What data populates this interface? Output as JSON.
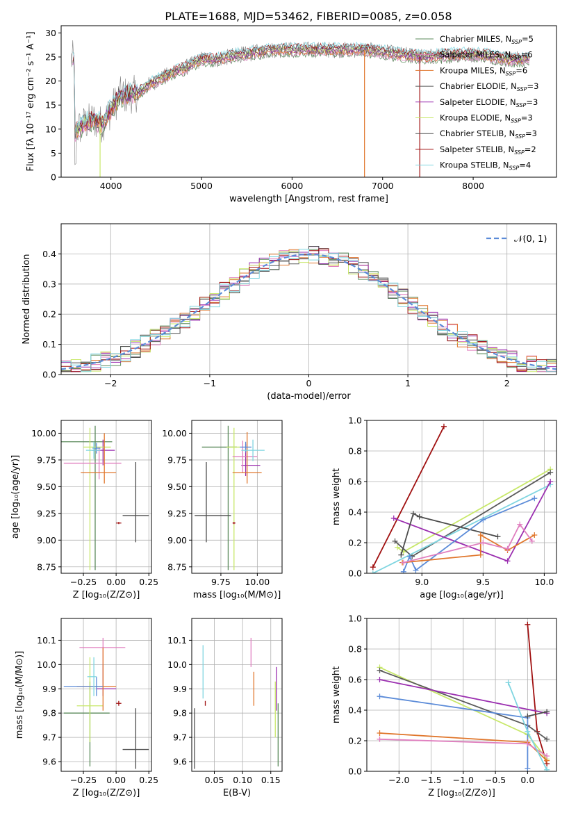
{
  "title": "PLATE=1688, MJD=53462, FIBERID=0085, z=0.058",
  "colors": {
    "chabrier_miles": "#5a8a5a",
    "salpeter_miles": "#e07fbf",
    "kroupa_miles": "#e0762b",
    "chabrier_elodie": "#5a5a5a",
    "salpeter_elodie": "#9b2fb0",
    "kroupa_elodie": "#c8e86a",
    "chabrier_stelib": "#4d4d4d",
    "salpeter_stelib": "#a01010",
    "kroupa_stelib": "#7fd5e0",
    "blue": "#5b8bd8",
    "grid": "#b0b0b0",
    "gray_spectrum": "#808080"
  },
  "chart_data": [
    {
      "id": "spectrum",
      "type": "line",
      "xlabel": "wavelength [Angstrom, rest frame]",
      "ylabel": "Flux [fλ 10⁻¹⁷ erg cm⁻² s⁻¹ A⁻¹]",
      "xlim": [
        3450,
        8920
      ],
      "ylim": [
        0,
        31.5
      ],
      "xticks": [
        4000,
        5000,
        6000,
        7000,
        8000
      ],
      "yticks": [
        0,
        5,
        10,
        15,
        20,
        25,
        30
      ],
      "legend_position": "right",
      "legend": [
        {
          "label": "Chabrier MILES, N",
          "sub": "SSP",
          "suffix": "=5",
          "color": "#5a8a5a"
        },
        {
          "label": "Salpeter MILES, N",
          "sub": "SSP",
          "suffix": "=6",
          "color": "#e07fbf"
        },
        {
          "label": "Kroupa MILES, N",
          "sub": "SSP",
          "suffix": "=6",
          "color": "#e0762b"
        },
        {
          "label": "Chabrier ELODIE, N",
          "sub": "SSP",
          "suffix": "=3",
          "color": "#5a5a5a"
        },
        {
          "label": "Salpeter ELODIE, N",
          "sub": "SSP",
          "suffix": "=3",
          "color": "#9b2fb0"
        },
        {
          "label": "Kroupa ELODIE, N",
          "sub": "SSP",
          "suffix": "=3",
          "color": "#c8e86a"
        },
        {
          "label": "Chabrier STELIB, N",
          "sub": "SSP",
          "suffix": "=3",
          "color": "#4d4d4d"
        },
        {
          "label": "Salpeter STELIB, N",
          "sub": "SSP",
          "suffix": "=2",
          "color": "#a01010"
        },
        {
          "label": "Kroupa STELIB, N",
          "sub": "SSP",
          "suffix": "=4",
          "color": "#7fd5e0"
        }
      ],
      "continuum": [
        [
          3600,
          9.5
        ],
        [
          3700,
          11
        ],
        [
          3800,
          12
        ],
        [
          3900,
          11
        ],
        [
          4000,
          14
        ],
        [
          4100,
          17
        ],
        [
          4200,
          17
        ],
        [
          4300,
          17.5
        ],
        [
          4400,
          19
        ],
        [
          4500,
          20
        ],
        [
          4600,
          21
        ],
        [
          4700,
          22
        ],
        [
          4800,
          22.5
        ],
        [
          4900,
          23.5
        ],
        [
          5000,
          24.5
        ],
        [
          5100,
          24.5
        ],
        [
          5200,
          24.5
        ],
        [
          5300,
          25
        ],
        [
          5400,
          25.5
        ],
        [
          5500,
          25.5
        ],
        [
          5600,
          26
        ],
        [
          5800,
          26.5
        ],
        [
          6000,
          26.5
        ],
        [
          6200,
          26.5
        ],
        [
          6500,
          26.5
        ],
        [
          6800,
          26.5
        ],
        [
          7000,
          26
        ],
        [
          7200,
          25.5
        ],
        [
          7500,
          25
        ],
        [
          7800,
          25.5
        ],
        [
          8100,
          25.5
        ],
        [
          8400,
          24.5
        ],
        [
          8600,
          24.5
        ]
      ],
      "dropouts": [
        [
          3880,
          0
        ],
        [
          6800,
          0
        ],
        [
          7410,
          0
        ]
      ]
    },
    {
      "id": "residuals",
      "type": "bar",
      "xlabel": "(data-model)/error",
      "ylabel": "Normed distribution",
      "xlim": [
        -2.5,
        2.5
      ],
      "ylim": [
        0,
        0.5
      ],
      "xticks": [
        -2,
        -1,
        0,
        1,
        2
      ],
      "yticks": [
        0.0,
        0.1,
        0.2,
        0.3,
        0.4
      ],
      "bin_width": 0.1,
      "legend": "𝒩(0, 1)",
      "legend_position": "top-right",
      "normal_curve": {
        "mu": 0,
        "sigma": 1
      }
    },
    {
      "id": "age_vs_Z",
      "type": "scatter",
      "xlabel": "Z [log₁₀(Z/Z⊙)]",
      "ylabel": "age  [log₁₀(age/yr)]",
      "xlim": [
        -0.42,
        0.27
      ],
      "ylim": [
        8.69,
        10.12
      ],
      "xticks": [
        -0.25,
        0.0,
        0.25
      ],
      "yticks": [
        8.75,
        9.0,
        9.25,
        9.5,
        9.75,
        10.0
      ],
      "points": [
        {
          "x": -0.16,
          "y": 9.92,
          "xerr": [
            0.29,
            0.13
          ],
          "yerr": [
            1.2,
            0.15
          ],
          "color": "#5a8a5a"
        },
        {
          "x": 0.15,
          "y": 9.23,
          "xerr": [
            0.1,
            0.1
          ],
          "yerr": [
            0.25,
            0.5
          ],
          "color": "#4d4d4d"
        },
        {
          "x": -0.1,
          "y": 9.84,
          "xerr": [
            0.08,
            0.09
          ],
          "yerr": [
            0.14,
            0.1
          ],
          "color": "#9b2fb0"
        },
        {
          "x": -0.2,
          "y": 9.87,
          "xerr": [
            0.05,
            0.16
          ],
          "yerr": [
            1.15,
            0.18
          ],
          "color": "#c8e86a"
        },
        {
          "x": -0.13,
          "y": 9.72,
          "xerr": [
            0.27,
            0.17
          ],
          "yerr": [
            0.15,
            0.15
          ],
          "color": "#e07fbf"
        },
        {
          "x": -0.09,
          "y": 9.63,
          "xerr": [
            0.18,
            0.09
          ],
          "yerr": [
            0.1,
            0.37
          ],
          "color": "#e0762b"
        },
        {
          "x": -0.15,
          "y": 9.86,
          "xerr": [
            0.03,
            0.03
          ],
          "yerr": [
            0.05,
            0.05
          ],
          "color": "#5b8bd8"
        },
        {
          "x": 0.02,
          "y": 9.16,
          "xerr": [
            0.02,
            0.02
          ],
          "yerr": [
            0.01,
            0.01
          ],
          "color": "#a01010"
        },
        {
          "x": -0.17,
          "y": 9.84,
          "xerr": [
            0.06,
            0.05
          ],
          "yerr": [
            0.08,
            0.08
          ],
          "color": "#7fd5e0"
        }
      ]
    },
    {
      "id": "age_vs_mass",
      "type": "scatter",
      "xlabel": "mass [log₁₀(M/M⊙)]",
      "ylabel": "",
      "xlim": [
        9.55,
        10.17
      ],
      "ylim": [
        8.69,
        10.12
      ],
      "xticks": [
        9.75,
        10.0
      ],
      "yticks": [
        8.75,
        9.0,
        9.25,
        9.5,
        9.75,
        10.0
      ],
      "points": [
        {
          "x": 9.8,
          "y": 9.87,
          "xerr": [
            0.18,
            0.06
          ],
          "yerr": [
            1.15,
            0.2
          ],
          "color": "#5a8a5a"
        },
        {
          "x": 9.65,
          "y": 9.23,
          "xerr": [
            0.08,
            0.17
          ],
          "yerr": [
            0.25,
            0.5
          ],
          "color": "#4d4d4d"
        },
        {
          "x": 9.92,
          "y": 9.7,
          "xerr": [
            0.03,
            0.1
          ],
          "yerr": [
            0.1,
            0.2
          ],
          "color": "#9b2fb0"
        },
        {
          "x": 9.84,
          "y": 9.87,
          "xerr": [
            0.05,
            0.04
          ],
          "yerr": [
            1.15,
            0.18
          ],
          "color": "#c8e86a"
        },
        {
          "x": 9.9,
          "y": 9.78,
          "xerr": [
            0.07,
            0.1
          ],
          "yerr": [
            0.15,
            0.15
          ],
          "color": "#e07fbf"
        },
        {
          "x": 9.93,
          "y": 9.63,
          "xerr": [
            0.1,
            0.1
          ],
          "yerr": [
            0.1,
            0.38
          ],
          "color": "#e0762b"
        },
        {
          "x": 9.92,
          "y": 9.87,
          "xerr": [
            0.04,
            0.04
          ],
          "yerr": [
            0.05,
            0.05
          ],
          "color": "#5b8bd8"
        },
        {
          "x": 9.84,
          "y": 9.16,
          "xerr": [
            0.01,
            0.01
          ],
          "yerr": [
            0.01,
            0.01
          ],
          "color": "#a01010"
        },
        {
          "x": 9.97,
          "y": 9.84,
          "xerr": [
            0.08,
            0.08
          ],
          "yerr": [
            0.1,
            0.1
          ],
          "color": "#7fd5e0"
        }
      ]
    },
    {
      "id": "weight_vs_age",
      "type": "line",
      "xlabel": "age  [log₁₀(age/yr)]",
      "ylabel": "mass weight",
      "xlim": [
        8.55,
        10.1
      ],
      "ylim": [
        0,
        1.0
      ],
      "xticks": [
        9.0,
        9.5,
        10.0
      ],
      "yticks": [
        0.0,
        0.2,
        0.4,
        0.6,
        0.8,
        1.0
      ],
      "series": [
        {
          "color": "#a01010",
          "x": [
            8.6,
            9.18
          ],
          "y": [
            0.04,
            0.96
          ]
        },
        {
          "color": "#c8e86a",
          "x": [
            8.8,
            8.85,
            10.05
          ],
          "y": [
            0.17,
            0.14,
            0.68
          ]
        },
        {
          "color": "#5a5a5a",
          "x": [
            8.78,
            8.92,
            10.05
          ],
          "y": [
            0.21,
            0.11,
            0.66
          ]
        },
        {
          "color": "#7fd5e0",
          "x": [
            8.6,
            10.05
          ],
          "y": [
            0.0,
            0.58
          ]
        },
        {
          "color": "#9b2fb0",
          "x": [
            8.77,
            9.7,
            10.05
          ],
          "y": [
            0.36,
            0.08,
            0.6
          ]
        },
        {
          "color": "#4d4d4d",
          "x": [
            8.83,
            8.93,
            8.98,
            9.62
          ],
          "y": [
            0.12,
            0.39,
            0.37,
            0.24
          ]
        },
        {
          "color": "#5b8bd8",
          "x": [
            8.85,
            8.9,
            8.95,
            9.5,
            9.92
          ],
          "y": [
            0.01,
            0.11,
            0.02,
            0.35,
            0.49
          ]
        },
        {
          "color": "#e0762b",
          "x": [
            8.84,
            9.48,
            9.48,
            9.7,
            9.92
          ],
          "y": [
            0.07,
            0.12,
            0.25,
            0.15,
            0.25
          ]
        },
        {
          "color": "#e07fbf",
          "x": [
            8.85,
            9.5,
            9.7,
            9.8,
            9.9
          ],
          "y": [
            0.07,
            0.2,
            0.16,
            0.32,
            0.21
          ]
        }
      ]
    },
    {
      "id": "mass_vs_Z",
      "type": "scatter",
      "xlabel": "Z [log₁₀(Z/Z⊙)]",
      "ylabel": "mass [log₁₀(M/M⊙)]",
      "xlim": [
        -0.42,
        0.27
      ],
      "ylim": [
        9.56,
        10.19
      ],
      "xticks": [
        -0.25,
        0.0,
        0.25
      ],
      "yticks": [
        9.6,
        9.7,
        9.8,
        9.9,
        10.0,
        10.1
      ],
      "points": [
        {
          "x": -0.2,
          "y": 9.8,
          "xerr": [
            0.2,
            0.15
          ],
          "yerr": [
            0.22,
            0.13
          ],
          "color": "#5a8a5a"
        },
        {
          "x": 0.15,
          "y": 9.65,
          "xerr": [
            0.1,
            0.1
          ],
          "yerr": [
            0.08,
            0.17
          ],
          "color": "#4d4d4d"
        },
        {
          "x": -0.1,
          "y": 9.9,
          "xerr": [
            0.05,
            0.1
          ],
          "yerr": [
            0.03,
            0.1
          ],
          "color": "#9b2fb0"
        },
        {
          "x": -0.2,
          "y": 9.83,
          "xerr": [
            0.1,
            0.1
          ],
          "yerr": [
            0.15,
            0.2
          ],
          "color": "#c8e86a"
        },
        {
          "x": -0.1,
          "y": 10.07,
          "xerr": [
            0.18,
            0.17
          ],
          "yerr": [
            0.07,
            0.04
          ],
          "color": "#e07fbf"
        },
        {
          "x": -0.1,
          "y": 9.91,
          "xerr": [
            0.2,
            0.1
          ],
          "yerr": [
            0.1,
            0.16
          ],
          "color": "#e0762b"
        },
        {
          "x": -0.15,
          "y": 9.91,
          "xerr": [
            0.25,
            0.05
          ],
          "yerr": [
            0.04,
            0.04
          ],
          "color": "#5b8bd8"
        },
        {
          "x": 0.02,
          "y": 9.84,
          "xerr": [
            0.02,
            0.02
          ],
          "yerr": [
            0.01,
            0.01
          ],
          "color": "#a01010"
        },
        {
          "x": -0.17,
          "y": 9.95,
          "xerr": [
            0.05,
            0.02
          ],
          "yerr": [
            0.08,
            0.08
          ],
          "color": "#7fd5e0"
        }
      ]
    },
    {
      "id": "mass_vs_EBV",
      "type": "scatter",
      "xlabel": "E(B-V)",
      "ylabel": "",
      "xlim": [
        0.01,
        0.17
      ],
      "ylim": [
        9.56,
        10.19
      ],
      "xticks": [
        0.05,
        0.1,
        0.15
      ],
      "yticks": [
        9.6,
        9.7,
        9.8,
        9.9,
        10.0,
        10.1
      ],
      "points": [
        {
          "x": 0.015,
          "y": 9.71,
          "xerr": [
            0,
            0
          ],
          "yerr": [
            0.14,
            0.11
          ],
          "color": "#4d4d4d"
        },
        {
          "x": 0.03,
          "y": 9.97,
          "xerr": [
            0,
            0
          ],
          "yerr": [
            0.11,
            0.11
          ],
          "color": "#7fd5e0"
        },
        {
          "x": 0.034,
          "y": 9.84,
          "xerr": [
            0,
            0
          ],
          "yerr": [
            0.01,
            0.01
          ],
          "color": "#a01010"
        },
        {
          "x": 0.115,
          "y": 10.05,
          "xerr": [
            0,
            0
          ],
          "yerr": [
            0.06,
            0.06
          ],
          "color": "#e07fbf"
        },
        {
          "x": 0.12,
          "y": 9.9,
          "xerr": [
            0,
            0
          ],
          "yerr": [
            0.07,
            0.07
          ],
          "color": "#e0762b"
        },
        {
          "x": 0.158,
          "y": 9.82,
          "xerr": [
            0,
            0
          ],
          "yerr": [
            0.12,
            0.11
          ],
          "color": "#c8e86a"
        },
        {
          "x": 0.16,
          "y": 9.9,
          "xerr": [
            0,
            0
          ],
          "yerr": [
            0.09,
            0.09
          ],
          "color": "#9b2fb0"
        },
        {
          "x": 0.163,
          "y": 9.76,
          "xerr": [
            0,
            0
          ],
          "yerr": [
            0.18,
            0.08
          ],
          "color": "#5a8a5a"
        }
      ]
    },
    {
      "id": "weight_vs_Z",
      "type": "line",
      "xlabel": "Z [log₁₀(Z/Z⊙)]",
      "ylabel": "mass weight",
      "xlim": [
        -2.5,
        0.45
      ],
      "ylim": [
        0,
        1.0
      ],
      "xticks": [
        -2.0,
        -1.5,
        -1.0,
        -0.5,
        0.0
      ],
      "yticks": [
        0.0,
        0.2,
        0.4,
        0.6,
        0.8,
        1.0
      ],
      "series": [
        {
          "color": "#a01010",
          "x": [
            0.0,
            0.15,
            0.3
          ],
          "y": [
            0.96,
            0.26,
            0.05
          ]
        },
        {
          "color": "#c8e86a",
          "x": [
            -2.3,
            0.0,
            0.3
          ],
          "y": [
            0.68,
            0.24,
            0.08
          ]
        },
        {
          "color": "#5a5a5a",
          "x": [
            -2.3,
            0.0,
            0.3
          ],
          "y": [
            0.66,
            0.3,
            0.21
          ]
        },
        {
          "color": "#9b2fb0",
          "x": [
            -2.3,
            0.3
          ],
          "y": [
            0.6,
            0.38
          ]
        },
        {
          "color": "#5b8bd8",
          "x": [
            -2.3,
            0.0,
            0.0
          ],
          "y": [
            0.49,
            0.35,
            0.02
          ]
        },
        {
          "color": "#e0762b",
          "x": [
            -2.3,
            0.0,
            0.3
          ],
          "y": [
            0.25,
            0.19,
            0.07
          ]
        },
        {
          "color": "#e07fbf",
          "x": [
            -2.3,
            0.0,
            0.3
          ],
          "y": [
            0.21,
            0.18,
            0.1
          ]
        },
        {
          "color": "#7fd5e0",
          "x": [
            -0.3,
            0.0,
            0.3
          ],
          "y": [
            0.58,
            0.26,
            0.01
          ]
        },
        {
          "color": "#4d4d4d",
          "x": [
            0.0,
            0.3
          ],
          "y": [
            0.36,
            0.39
          ]
        }
      ]
    }
  ]
}
